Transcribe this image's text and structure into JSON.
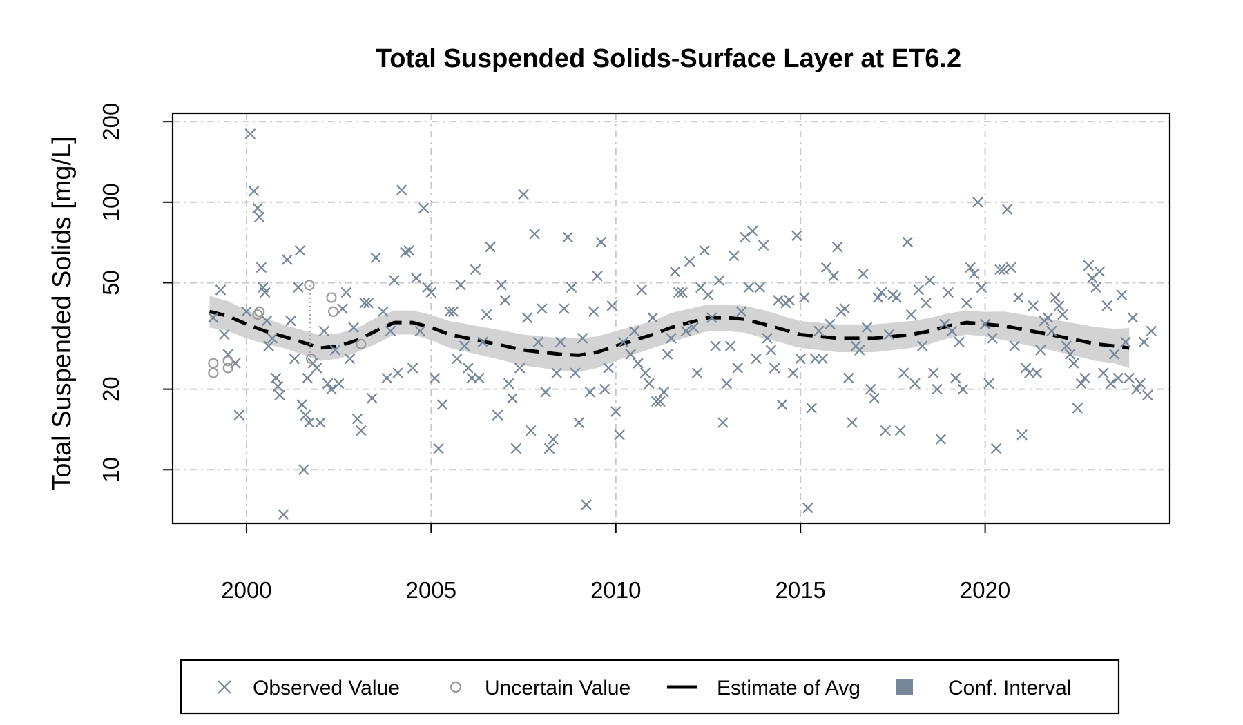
{
  "colors": {
    "observed": "#76869a",
    "uncertain": "#9a9a9a",
    "estimate": "#000000",
    "ci_band": "#d3d3d3",
    "ci_legend": "#76869a",
    "grid": "#c8c8c8",
    "frame": "#000000"
  },
  "icons": {
    "observed": "x-cross-marker",
    "uncertain": "open-circle-marker",
    "estimate": "dashed-line",
    "ci": "filled-square"
  },
  "chart_data": {
    "type": "scatter",
    "title": "Total Suspended Solids-Surface Layer at ET6.2",
    "ylabel": "Total Suspended Solids [mg/L]",
    "xlabel": "",
    "y_scale": "log",
    "xlim": [
      1998.0,
      2025.0
    ],
    "ylim": [
      6.3,
      215
    ],
    "x_ticks": [
      2000,
      2005,
      2010,
      2015,
      2020
    ],
    "x_tick_labels": [
      "2000",
      "2005",
      "2010",
      "2015",
      "2020"
    ],
    "y_ticks": [
      10,
      20,
      50,
      100,
      200
    ],
    "y_tick_labels": [
      "10",
      "20",
      "50",
      "100",
      "200"
    ],
    "grid": true,
    "legend": {
      "placement": "bottom",
      "items": [
        {
          "label": "Observed Value",
          "kind": "observed"
        },
        {
          "label": "Uncertain Value",
          "kind": "uncertain"
        },
        {
          "label": "Estimate of Avg",
          "kind": "estimate"
        },
        {
          "label": "Conf. Interval",
          "kind": "ci"
        }
      ]
    },
    "observed": [
      [
        1999.1,
        37
      ],
      [
        1999.3,
        47
      ],
      [
        1999.4,
        32
      ],
      [
        1999.5,
        27
      ],
      [
        1999.7,
        25
      ],
      [
        1999.8,
        16
      ],
      [
        2000.0,
        39
      ],
      [
        2000.1,
        180
      ],
      [
        2000.2,
        110
      ],
      [
        2000.3,
        95
      ],
      [
        2000.35,
        88
      ],
      [
        2000.4,
        57
      ],
      [
        2000.45,
        48
      ],
      [
        2000.5,
        46
      ],
      [
        2000.55,
        36
      ],
      [
        2000.6,
        29
      ],
      [
        2000.7,
        31
      ],
      [
        2000.8,
        22
      ],
      [
        2000.85,
        20.5
      ],
      [
        2000.9,
        19
      ],
      [
        2001.0,
        6.8
      ],
      [
        2001.1,
        61
      ],
      [
        2001.2,
        36
      ],
      [
        2001.3,
        26
      ],
      [
        2001.4,
        48
      ],
      [
        2001.45,
        66
      ],
      [
        2001.5,
        17.5
      ],
      [
        2001.55,
        10
      ],
      [
        2001.6,
        16
      ],
      [
        2001.65,
        22
      ],
      [
        2001.7,
        15
      ],
      [
        2001.8,
        25
      ],
      [
        2001.9,
        24
      ],
      [
        2002.0,
        15
      ],
      [
        2002.1,
        33
      ],
      [
        2002.2,
        21
      ],
      [
        2002.3,
        20
      ],
      [
        2002.4,
        28
      ],
      [
        2002.5,
        21
      ],
      [
        2002.6,
        40
      ],
      [
        2002.7,
        46
      ],
      [
        2002.8,
        26
      ],
      [
        2002.9,
        34
      ],
      [
        2003.0,
        15.5
      ],
      [
        2003.1,
        14
      ],
      [
        2003.2,
        42
      ],
      [
        2003.3,
        42
      ],
      [
        2003.4,
        18.5
      ],
      [
        2003.5,
        62
      ],
      [
        2003.7,
        39
      ],
      [
        2003.8,
        22
      ],
      [
        2003.9,
        33
      ],
      [
        2004.0,
        51
      ],
      [
        2004.1,
        23
      ],
      [
        2004.2,
        111
      ],
      [
        2004.3,
        65
      ],
      [
        2004.4,
        66
      ],
      [
        2004.5,
        24
      ],
      [
        2004.6,
        52
      ],
      [
        2004.7,
        33
      ],
      [
        2004.8,
        95
      ],
      [
        2004.9,
        48
      ],
      [
        2005.0,
        46
      ],
      [
        2005.1,
        22
      ],
      [
        2005.2,
        12
      ],
      [
        2005.3,
        17.5
      ],
      [
        2005.5,
        39
      ],
      [
        2005.6,
        39
      ],
      [
        2005.7,
        26
      ],
      [
        2005.8,
        49
      ],
      [
        2005.9,
        29
      ],
      [
        2006.0,
        24
      ],
      [
        2006.1,
        22
      ],
      [
        2006.2,
        56
      ],
      [
        2006.3,
        22
      ],
      [
        2006.4,
        30
      ],
      [
        2006.5,
        38
      ],
      [
        2006.6,
        68
      ],
      [
        2006.8,
        16
      ],
      [
        2006.9,
        49
      ],
      [
        2007.0,
        43
      ],
      [
        2007.1,
        21
      ],
      [
        2007.2,
        18.5
      ],
      [
        2007.3,
        12
      ],
      [
        2007.4,
        24
      ],
      [
        2007.5,
        107
      ],
      [
        2007.6,
        37
      ],
      [
        2007.7,
        14
      ],
      [
        2007.8,
        76
      ],
      [
        2007.9,
        30
      ],
      [
        2008.0,
        40
      ],
      [
        2008.1,
        19.5
      ],
      [
        2008.2,
        12
      ],
      [
        2008.3,
        13
      ],
      [
        2008.4,
        23
      ],
      [
        2008.5,
        30
      ],
      [
        2008.6,
        40
      ],
      [
        2008.7,
        74
      ],
      [
        2008.8,
        48
      ],
      [
        2008.9,
        23
      ],
      [
        2009.0,
        15
      ],
      [
        2009.1,
        31
      ],
      [
        2009.2,
        7.4
      ],
      [
        2009.3,
        19.5
      ],
      [
        2009.4,
        39
      ],
      [
        2009.5,
        53
      ],
      [
        2009.6,
        71
      ],
      [
        2009.7,
        20
      ],
      [
        2009.8,
        24
      ],
      [
        2009.9,
        41
      ],
      [
        2010.0,
        16.5
      ],
      [
        2010.1,
        13.5
      ],
      [
        2010.2,
        30
      ],
      [
        2010.4,
        27
      ],
      [
        2010.5,
        33
      ],
      [
        2010.6,
        25
      ],
      [
        2010.7,
        47
      ],
      [
        2010.8,
        23
      ],
      [
        2010.9,
        21
      ],
      [
        2011.0,
        37
      ],
      [
        2011.1,
        18
      ],
      [
        2011.2,
        18
      ],
      [
        2011.3,
        19.5
      ],
      [
        2011.4,
        27
      ],
      [
        2011.5,
        31
      ],
      [
        2011.6,
        55
      ],
      [
        2011.7,
        46
      ],
      [
        2011.8,
        46
      ],
      [
        2011.9,
        33
      ],
      [
        2012.0,
        60
      ],
      [
        2012.1,
        34
      ],
      [
        2012.2,
        23
      ],
      [
        2012.3,
        48
      ],
      [
        2012.4,
        66
      ],
      [
        2012.5,
        45
      ],
      [
        2012.6,
        37
      ],
      [
        2012.7,
        29
      ],
      [
        2012.8,
        51
      ],
      [
        2012.9,
        15
      ],
      [
        2013.0,
        21
      ],
      [
        2013.1,
        29
      ],
      [
        2013.2,
        63
      ],
      [
        2013.3,
        24
      ],
      [
        2013.4,
        39
      ],
      [
        2013.5,
        74
      ],
      [
        2013.6,
        48
      ],
      [
        2013.7,
        78
      ],
      [
        2013.8,
        26
      ],
      [
        2013.9,
        48
      ],
      [
        2014.0,
        69
      ],
      [
        2014.1,
        31
      ],
      [
        2014.2,
        28
      ],
      [
        2014.3,
        24
      ],
      [
        2014.4,
        43
      ],
      [
        2014.5,
        17.5
      ],
      [
        2014.6,
        42
      ],
      [
        2014.7,
        43
      ],
      [
        2014.8,
        23
      ],
      [
        2014.9,
        75
      ],
      [
        2015.0,
        26
      ],
      [
        2015.1,
        44
      ],
      [
        2015.2,
        7.2
      ],
      [
        2015.3,
        17
      ],
      [
        2015.4,
        26
      ],
      [
        2015.5,
        33
      ],
      [
        2015.6,
        26
      ],
      [
        2015.7,
        57
      ],
      [
        2015.8,
        35
      ],
      [
        2015.9,
        53
      ],
      [
        2016.0,
        68
      ],
      [
        2016.1,
        39
      ],
      [
        2016.2,
        40
      ],
      [
        2016.3,
        22
      ],
      [
        2016.4,
        15
      ],
      [
        2016.5,
        29
      ],
      [
        2016.6,
        28
      ],
      [
        2016.7,
        54
      ],
      [
        2016.8,
        34
      ],
      [
        2016.9,
        20
      ],
      [
        2017.0,
        18.5
      ],
      [
        2017.1,
        44
      ],
      [
        2017.2,
        46
      ],
      [
        2017.3,
        14
      ],
      [
        2017.4,
        32
      ],
      [
        2017.5,
        45
      ],
      [
        2017.6,
        44
      ],
      [
        2017.7,
        14
      ],
      [
        2017.8,
        23
      ],
      [
        2017.9,
        71
      ],
      [
        2018.0,
        38
      ],
      [
        2018.1,
        21
      ],
      [
        2018.2,
        47
      ],
      [
        2018.3,
        29
      ],
      [
        2018.4,
        42
      ],
      [
        2018.5,
        51
      ],
      [
        2018.6,
        23
      ],
      [
        2018.7,
        20
      ],
      [
        2018.8,
        13
      ],
      [
        2018.9,
        35
      ],
      [
        2019.0,
        46
      ],
      [
        2019.1,
        33
      ],
      [
        2019.2,
        22
      ],
      [
        2019.3,
        30
      ],
      [
        2019.4,
        20
      ],
      [
        2019.5,
        42
      ],
      [
        2019.6,
        57
      ],
      [
        2019.7,
        54
      ],
      [
        2019.8,
        100
      ],
      [
        2019.9,
        48
      ],
      [
        2020.0,
        35
      ],
      [
        2020.1,
        21
      ],
      [
        2020.2,
        31
      ],
      [
        2020.3,
        12
      ],
      [
        2020.4,
        56
      ],
      [
        2020.5,
        56
      ],
      [
        2020.6,
        94
      ],
      [
        2020.7,
        57
      ],
      [
        2020.8,
        29
      ],
      [
        2020.9,
        44
      ],
      [
        2021.0,
        13.5
      ],
      [
        2021.1,
        24
      ],
      [
        2021.2,
        23
      ],
      [
        2021.3,
        41
      ],
      [
        2021.4,
        23
      ],
      [
        2021.5,
        28
      ],
      [
        2021.6,
        36
      ],
      [
        2021.7,
        37
      ],
      [
        2021.8,
        33
      ],
      [
        2021.9,
        44
      ],
      [
        2022.0,
        41
      ],
      [
        2022.1,
        38
      ],
      [
        2022.2,
        29
      ],
      [
        2022.3,
        27
      ],
      [
        2022.4,
        25
      ],
      [
        2022.5,
        17
      ],
      [
        2022.6,
        21
      ],
      [
        2022.7,
        22
      ],
      [
        2022.8,
        58
      ],
      [
        2022.9,
        52
      ],
      [
        2023.0,
        48
      ],
      [
        2023.1,
        55
      ],
      [
        2023.2,
        23
      ],
      [
        2023.3,
        41
      ],
      [
        2023.4,
        21
      ],
      [
        2023.5,
        27
      ],
      [
        2023.6,
        22
      ],
      [
        2023.7,
        45
      ],
      [
        2023.8,
        30
      ],
      [
        2023.9,
        22
      ],
      [
        2024.0,
        37
      ],
      [
        2024.1,
        20
      ],
      [
        2024.2,
        21
      ],
      [
        2024.3,
        30
      ],
      [
        2024.4,
        19
      ],
      [
        2024.5,
        33
      ]
    ],
    "uncertain": [
      [
        1999.1,
        25
      ],
      [
        1999.1,
        23
      ],
      [
        1999.5,
        24
      ],
      [
        1999.5,
        25.5
      ],
      [
        2000.3,
        38
      ],
      [
        2000.35,
        39
      ],
      [
        2001.7,
        49
      ],
      [
        2001.75,
        26
      ],
      [
        2002.3,
        44
      ],
      [
        2002.35,
        39
      ],
      [
        2003.1,
        29.5
      ]
    ],
    "estimate": {
      "x": [
        1999.0,
        1999.5,
        2000.0,
        2000.5,
        2001.0,
        2001.5,
        2002.0,
        2002.5,
        2003.0,
        2003.5,
        2004.0,
        2004.5,
        2005.0,
        2005.5,
        2006.0,
        2006.5,
        2007.0,
        2007.5,
        2008.0,
        2008.5,
        2009.0,
        2009.5,
        2010.0,
        2010.5,
        2011.0,
        2011.5,
        2012.0,
        2012.5,
        2013.0,
        2013.5,
        2014.0,
        2014.5,
        2015.0,
        2015.5,
        2016.0,
        2016.5,
        2017.0,
        2017.5,
        2018.0,
        2018.5,
        2019.0,
        2019.5,
        2020.0,
        2020.5,
        2021.0,
        2021.5,
        2022.0,
        2022.5,
        2023.0,
        2023.5,
        2023.9
      ],
      "y": [
        39,
        37.5,
        35,
        33,
        31.5,
        30,
        28.5,
        29,
        30.5,
        33,
        35.5,
        35.5,
        34,
        32,
        31,
        30,
        29,
        28,
        27.5,
        27,
        26.8,
        27.5,
        29,
        30.5,
        32,
        34,
        35.5,
        37,
        37,
        36.5,
        35,
        33.5,
        32,
        31.5,
        31,
        31,
        31,
        31.5,
        32,
        33,
        34.5,
        35.5,
        35,
        34.5,
        33.5,
        32.5,
        31.5,
        30.5,
        29.5,
        29,
        28.5
      ],
      "ci_lower": [
        34,
        33,
        31,
        29.5,
        28.5,
        27,
        25.5,
        26,
        27.5,
        29.5,
        32,
        32,
        30.5,
        28.5,
        27.5,
        26.5,
        25.5,
        24.5,
        24,
        23.5,
        23.2,
        24,
        25.5,
        27,
        28.5,
        30,
        31.5,
        33,
        33,
        32.5,
        31,
        29.8,
        28.5,
        28,
        27.5,
        27.5,
        27.5,
        28,
        28.5,
        29.5,
        31,
        32,
        31.5,
        30.5,
        29.5,
        28.5,
        27.5,
        26.5,
        25.5,
        25,
        24
      ]
    }
  }
}
